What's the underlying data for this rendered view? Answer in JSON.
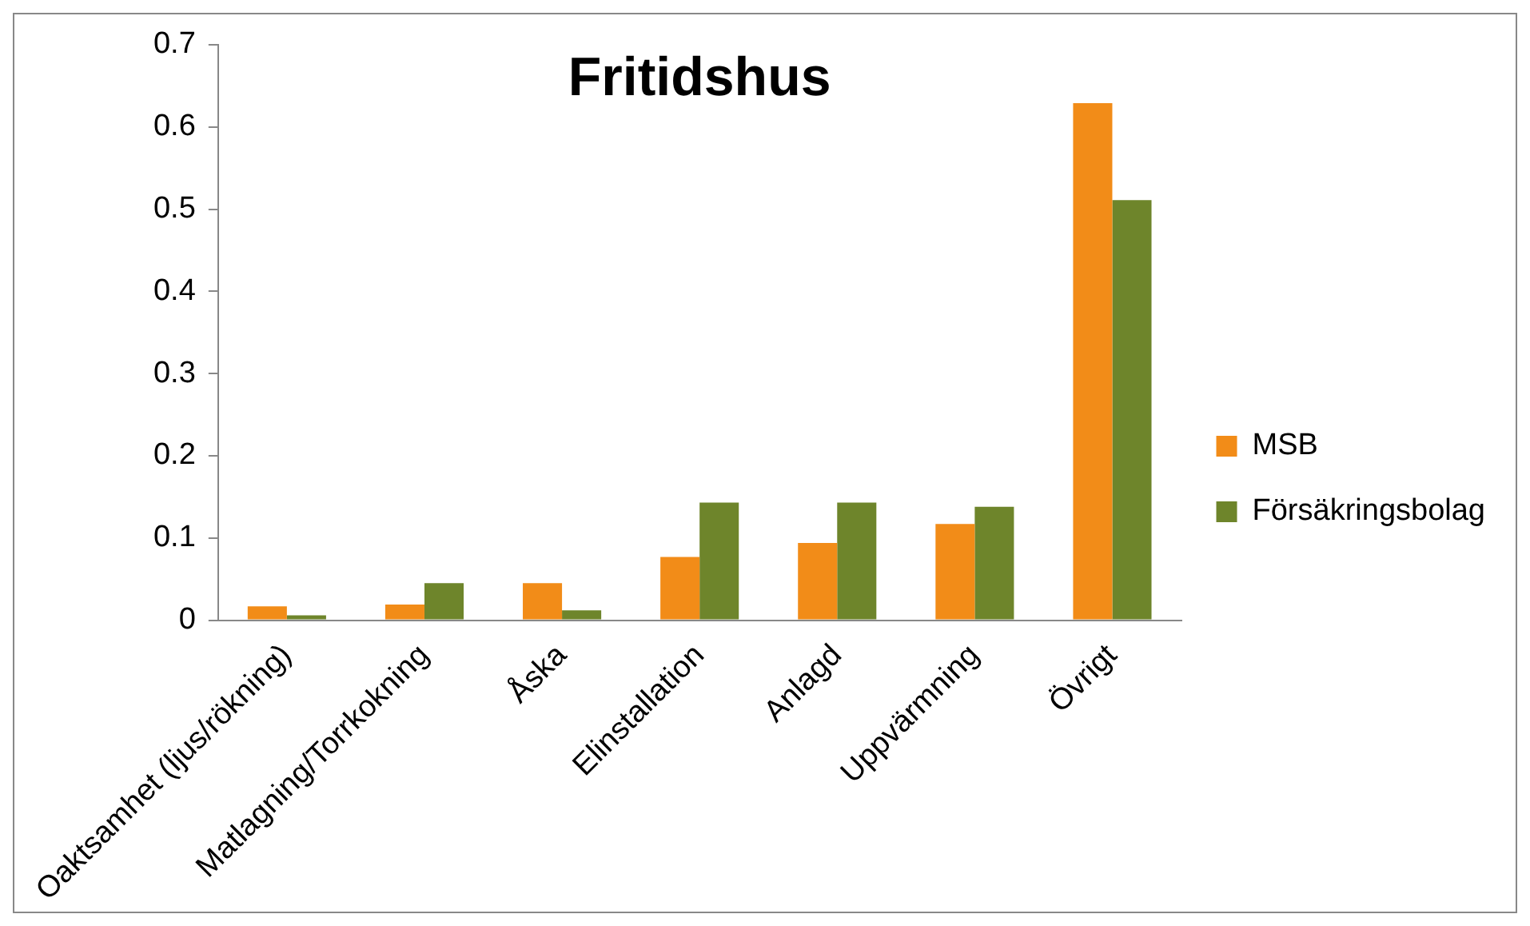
{
  "chart_data": {
    "type": "bar",
    "title": "Fritidshus",
    "categories": [
      "Oaktsamhet (ljus/rökning)",
      "Matlagning/Torrkokning",
      "Åska",
      "Elinstallation",
      "Anlagd",
      "Uppvärmning",
      "Övrigt"
    ],
    "series": [
      {
        "name": "MSB",
        "color": "#f28c18",
        "values": [
          0.017,
          0.019,
          0.045,
          0.077,
          0.094,
          0.117,
          0.629
        ]
      },
      {
        "name": "Försäkringsbolag",
        "color": "#6e852b",
        "values": [
          0.006,
          0.045,
          0.012,
          0.143,
          0.143,
          0.138,
          0.511
        ]
      }
    ],
    "ylim": [
      0,
      0.7
    ],
    "yticks": [
      0,
      0.1,
      0.2,
      0.3,
      0.4,
      0.5,
      0.6,
      0.7
    ],
    "grid": false,
    "legend": "right"
  }
}
